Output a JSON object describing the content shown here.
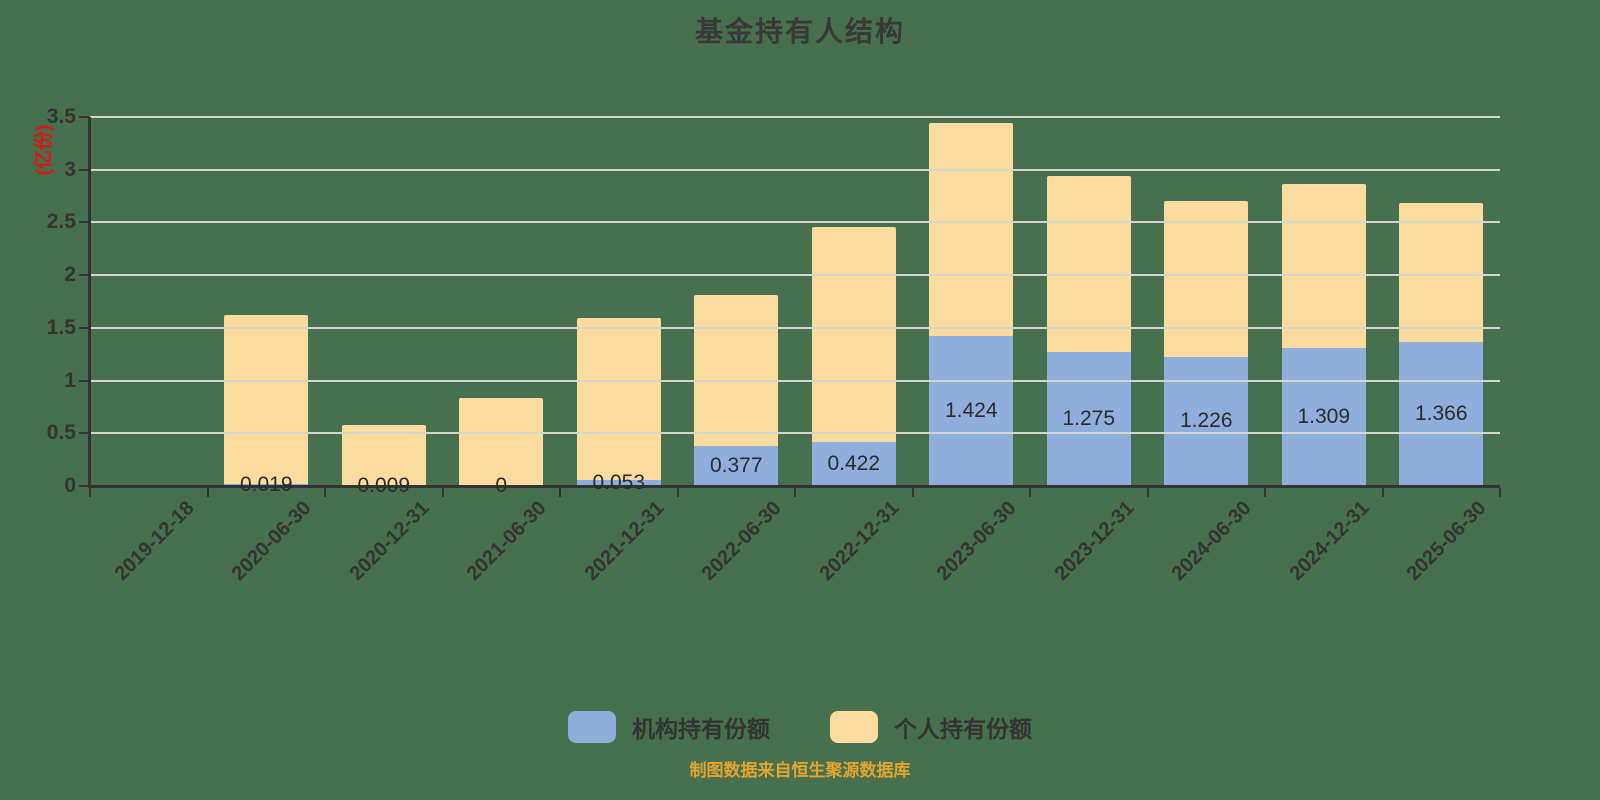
{
  "title": "基金持有人结构",
  "source_note": "制图数据来自恒生聚源数据库",
  "colors": {
    "background": "#47704E",
    "institution": "#8FAEDC",
    "individual": "#FBDC9E",
    "grid": "#D4D6D2",
    "axis": "#333333",
    "tick_text": "#333333",
    "value_text": "#2B2B2B",
    "title_text": "#383838",
    "unit_text": "#E01616",
    "source_text": "#E3A52F"
  },
  "y_axis": {
    "unit": "(亿份)",
    "tick_labels": [
      "0",
      "0.5",
      "1",
      "1.5",
      "2",
      "2.5",
      "3",
      "3.5"
    ],
    "tick_values": [
      0,
      0.5,
      1,
      1.5,
      2,
      2.5,
      3,
      3.5
    ]
  },
  "legend": {
    "items": [
      {
        "label": "机构持有份额"
      },
      {
        "label": "个人持有份额"
      }
    ]
  },
  "chart_data": {
    "type": "bar",
    "stacked": true,
    "title": "基金持有人结构",
    "ylabel": "(亿份)",
    "ylim": [
      0,
      3.5
    ],
    "grid": true,
    "legend_position": "bottom",
    "categories": [
      "2019-12-18",
      "2020-06-30",
      "2020-12-31",
      "2021-06-30",
      "2021-12-31",
      "2022-06-30",
      "2022-12-31",
      "2023-06-30",
      "2023-12-31",
      "2024-06-30",
      "2024-12-31",
      "2025-06-30"
    ],
    "series": [
      {
        "name": "机构持有份额",
        "color": "#8FAEDC",
        "values": [
          0,
          0.019,
          0.009,
          0,
          0.053,
          0.377,
          0.422,
          1.424,
          1.275,
          1.226,
          1.309,
          1.366
        ],
        "labels": [
          "",
          "0.019",
          "0.009",
          "0",
          "0.053",
          "0.377",
          "0.422",
          "1.424",
          "1.275",
          "1.226",
          "1.309",
          "1.366"
        ]
      },
      {
        "name": "个人持有份额",
        "color": "#FBDC9E",
        "values": [
          0,
          1.6,
          0.57,
          0.83,
          1.54,
          1.43,
          2.03,
          2.02,
          1.67,
          1.48,
          1.56,
          1.32
        ]
      }
    ]
  }
}
